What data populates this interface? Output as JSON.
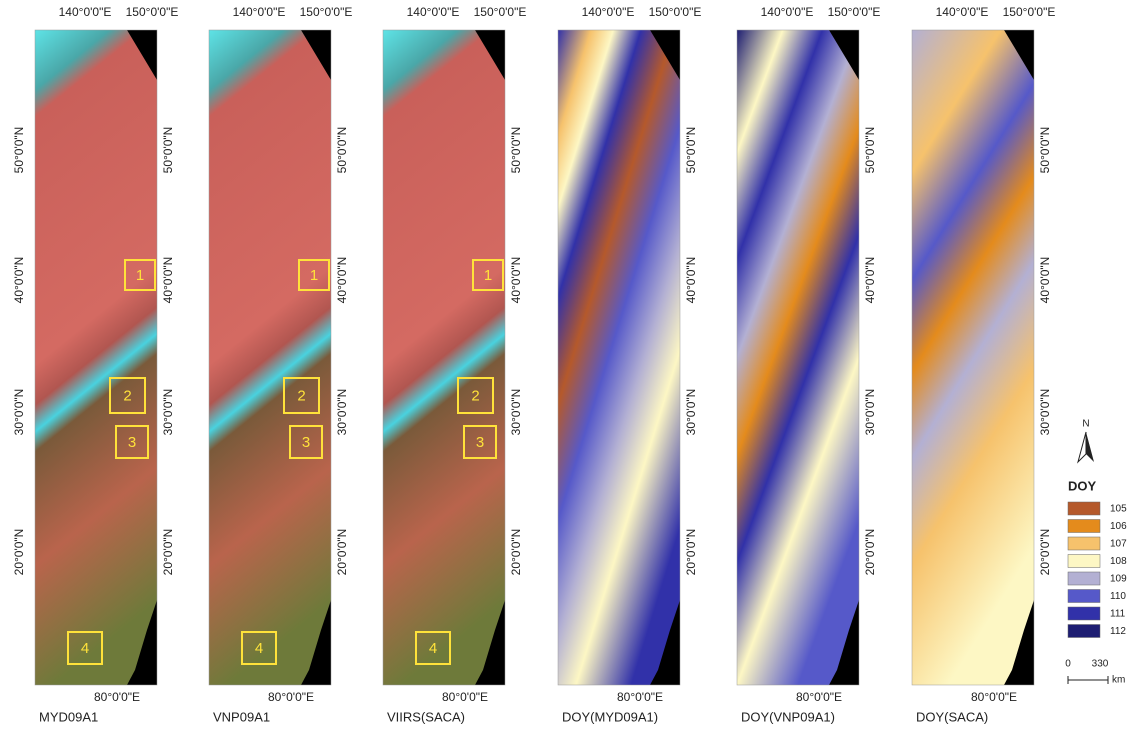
{
  "axes": {
    "lon_top": [
      "140°0'0\"E",
      "150°0'0\"E"
    ],
    "lon_bottom": "80°0'0\"E",
    "lat": [
      "50°0'0\"N",
      "40°0'0\"N",
      "30°0'0\"N",
      "20°0'0\"N"
    ]
  },
  "panels": [
    {
      "caption": "MYD09A1",
      "boxes": [
        "1",
        "2",
        "3",
        "4"
      ]
    },
    {
      "caption": "VNP09A1",
      "boxes": [
        "1",
        "2",
        "3",
        "4"
      ]
    },
    {
      "caption": "VIIRS(SACA)",
      "boxes": [
        "1",
        "2",
        "3",
        "4"
      ]
    },
    {
      "caption": "DOY(MYD09A1)"
    },
    {
      "caption": "DOY(VNP09A1)"
    },
    {
      "caption": "DOY(SACA)"
    }
  ],
  "legend": {
    "north": "N",
    "title": "DOY",
    "items": [
      {
        "label": 105,
        "color": "#b5592b"
      },
      {
        "label": 106,
        "color": "#e48b1c"
      },
      {
        "label": 107,
        "color": "#f6c26c"
      },
      {
        "label": 108,
        "color": "#fdf7c4"
      },
      {
        "label": 109,
        "color": "#b3b0d3"
      },
      {
        "label": 110,
        "color": "#5659c9"
      },
      {
        "label": 111,
        "color": "#3131a9"
      },
      {
        "label": 112,
        "color": "#1d1d72"
      }
    ],
    "scale": [
      "0",
      "330"
    ],
    "unit": "km"
  }
}
